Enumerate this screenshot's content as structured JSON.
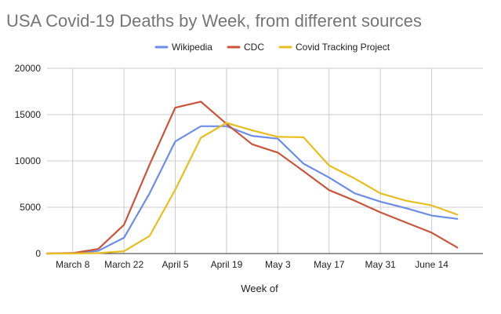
{
  "title": "USA Covid-19 Deaths by Week, from different sources",
  "chart_data": {
    "type": "line",
    "title": "USA Covid-19 Deaths by Week, from different sources",
    "xlabel": "Week of",
    "ylabel": "",
    "ylim": [
      0,
      20000
    ],
    "y_ticks": [
      0,
      5000,
      10000,
      15000,
      20000
    ],
    "grid": "vertical and horizontal",
    "legend_position": "top",
    "x": [
      "March 1",
      "March 8",
      "March 15",
      "March 22",
      "March 29",
      "April 5",
      "April 12",
      "April 19",
      "April 26",
      "May 3",
      "May 10",
      "May 17",
      "May 24",
      "May 31",
      "June 7",
      "June 14",
      "June 21",
      "June 28"
    ],
    "x_tick_labels": [
      "March 8",
      "March 22",
      "April 5",
      "April 19",
      "May 3",
      "May 17",
      "May 31",
      "June 14"
    ],
    "series": [
      {
        "name": "Wikipedia",
        "color": "#6d8ee8",
        "values": [
          0,
          30,
          300,
          1700,
          6500,
          12100,
          13750,
          13750,
          12700,
          12400,
          9700,
          8200,
          6500,
          5600,
          4900,
          4100,
          3750,
          null
        ]
      },
      {
        "name": "CDC",
        "color": "#c9553c",
        "values": [
          0,
          50,
          500,
          3100,
          9600,
          15750,
          16400,
          14000,
          11800,
          10900,
          8900,
          6850,
          5700,
          4450,
          3350,
          2250,
          650,
          null
        ]
      },
      {
        "name": "Covid Tracking Project",
        "color": "#e8be1e",
        "values": [
          0,
          10,
          50,
          250,
          1900,
          6900,
          12500,
          14100,
          13300,
          12600,
          12550,
          9500,
          8100,
          6500,
          5700,
          5200,
          4200,
          null
        ]
      }
    ]
  }
}
